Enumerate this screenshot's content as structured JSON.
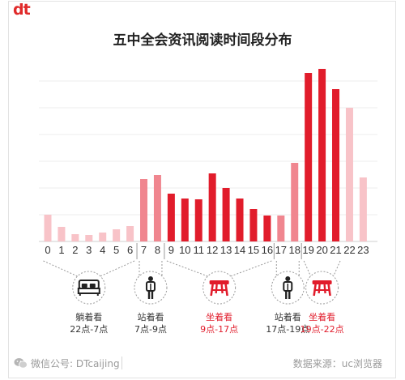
{
  "brand": {
    "logo_text": "dt"
  },
  "chart_data": {
    "type": "bar",
    "title": "五中全会资讯阅读时间段分布",
    "xlabel": "",
    "ylabel": "",
    "grid": true,
    "categories": [
      "0",
      "1",
      "2",
      "3",
      "4",
      "5",
      "6",
      "7",
      "8",
      "9",
      "10",
      "11",
      "12",
      "13",
      "14",
      "15",
      "16",
      "17",
      "18",
      "19",
      "20",
      "21",
      "22",
      "23"
    ],
    "values": [
      33,
      18,
      9,
      8,
      11,
      15,
      19,
      77,
      82,
      59,
      53,
      52,
      84,
      66,
      53,
      40,
      32,
      32,
      97,
      208,
      213,
      188,
      165,
      79
    ],
    "ylim": [
      0,
      240
    ],
    "gridlines": [
      0,
      33,
      66,
      99,
      132,
      165,
      198
    ],
    "bar_colors": [
      "#f8c3c8",
      "#f8c3c8",
      "#f8c3c8",
      "#f8c3c8",
      "#f8c3c8",
      "#f8c3c8",
      "#f8c3c8",
      "#f0868f",
      "#f0868f",
      "#e11c2b",
      "#e11c2b",
      "#e11c2b",
      "#e11c2b",
      "#e11c2b",
      "#e11c2b",
      "#e11c2b",
      "#e11c2b",
      "#f0868f",
      "#f0868f",
      "#e11c2b",
      "#e11c2b",
      "#e11c2b",
      "#f8c3c8",
      "#f8c3c8"
    ],
    "groups": [
      {
        "icon": "bed-icon",
        "name": "躺着看",
        "range": "22点-7点",
        "start": 0,
        "end": 6,
        "color": "#333333"
      },
      {
        "icon": "standing-person-icon",
        "name": "站着看",
        "range": "7点-9点",
        "start": 7,
        "end": 8,
        "color": "#333333"
      },
      {
        "icon": "stool-icon",
        "name": "坐着看",
        "range": "9点-17点",
        "start": 9,
        "end": 16,
        "color": "#e11c2b"
      },
      {
        "icon": "standing-person-icon",
        "name": "站着看",
        "range": "17点-19点",
        "start": 17,
        "end": 18,
        "color": "#333333"
      },
      {
        "icon": "stool-icon",
        "name": "坐着看",
        "range": "19点-22点",
        "start": 19,
        "end": 21,
        "color": "#e11c2b"
      }
    ]
  },
  "footer": {
    "left": "微信公号: DTcaijing",
    "right": "数据来源：uc浏览器",
    "icon": "wechat-icon"
  }
}
